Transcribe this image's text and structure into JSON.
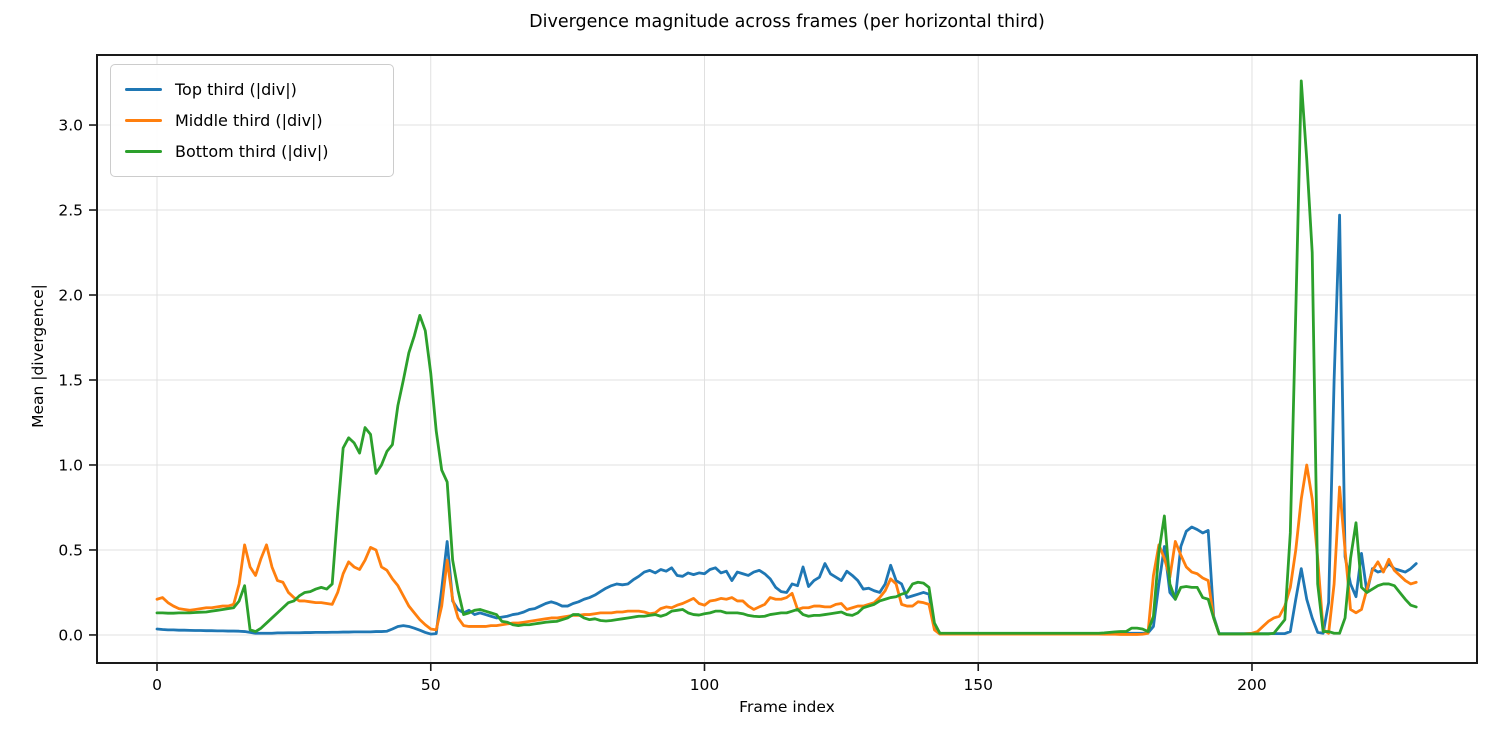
{
  "chart_data": {
    "type": "line",
    "title": "Divergence magnitude across frames (per horizontal third)",
    "xlabel": "Frame index",
    "ylabel": "Mean |divergence|",
    "x_start": 0,
    "x_step": 1,
    "xlim": [
      -10.96,
      241.1
    ],
    "ylim": [
      -0.165,
      3.412
    ],
    "grid": true,
    "legend_position": "upper-left",
    "axis_color": "#1a1a1a",
    "grid_color": "#e0e0e0",
    "x_ticks": [
      0,
      50,
      100,
      150,
      200
    ],
    "x_tick_labels": [
      "0",
      "50",
      "100",
      "150",
      "200"
    ],
    "y_ticks": [
      0.0,
      0.5,
      1.0,
      1.5,
      2.0,
      2.5,
      3.0
    ],
    "y_tick_labels": [
      "0.0",
      "0.5",
      "1.0",
      "1.5",
      "2.0",
      "2.5",
      "3.0"
    ],
    "series": [
      {
        "name": "Top third (|div|)",
        "color": "#1f77b4",
        "values": [
          0.035,
          0.032,
          0.03,
          0.03,
          0.028,
          0.028,
          0.027,
          0.026,
          0.026,
          0.025,
          0.025,
          0.024,
          0.024,
          0.023,
          0.023,
          0.022,
          0.02,
          0.015,
          0.01,
          0.01,
          0.01,
          0.01,
          0.012,
          0.012,
          0.013,
          0.013,
          0.013,
          0.014,
          0.014,
          0.015,
          0.015,
          0.015,
          0.016,
          0.016,
          0.017,
          0.017,
          0.018,
          0.018,
          0.018,
          0.018,
          0.02,
          0.02,
          0.022,
          0.035,
          0.05,
          0.055,
          0.05,
          0.04,
          0.028,
          0.015,
          0.005,
          0.008,
          0.27,
          0.55,
          0.2,
          0.15,
          0.13,
          0.145,
          0.12,
          0.13,
          0.12,
          0.11,
          0.1,
          0.105,
          0.11,
          0.12,
          0.125,
          0.135,
          0.15,
          0.155,
          0.17,
          0.185,
          0.195,
          0.185,
          0.17,
          0.17,
          0.185,
          0.195,
          0.21,
          0.22,
          0.235,
          0.255,
          0.275,
          0.29,
          0.3,
          0.295,
          0.3,
          0.325,
          0.345,
          0.37,
          0.38,
          0.365,
          0.385,
          0.375,
          0.395,
          0.35,
          0.345,
          0.365,
          0.355,
          0.365,
          0.36,
          0.385,
          0.395,
          0.365,
          0.375,
          0.32,
          0.37,
          0.36,
          0.35,
          0.37,
          0.38,
          0.36,
          0.33,
          0.28,
          0.255,
          0.25,
          0.3,
          0.29,
          0.4,
          0.285,
          0.32,
          0.34,
          0.42,
          0.36,
          0.34,
          0.32,
          0.375,
          0.35,
          0.32,
          0.27,
          0.275,
          0.26,
          0.25,
          0.3,
          0.41,
          0.32,
          0.3,
          0.22,
          0.23,
          0.24,
          0.25,
          0.24,
          0.05,
          0.01,
          0.008,
          0.008,
          0.008,
          0.008,
          0.008,
          0.008,
          0.008,
          0.008,
          0.008,
          0.008,
          0.008,
          0.008,
          0.008,
          0.008,
          0.008,
          0.008,
          0.008,
          0.008,
          0.008,
          0.008,
          0.008,
          0.008,
          0.008,
          0.008,
          0.008,
          0.008,
          0.008,
          0.008,
          0.008,
          0.008,
          0.009,
          0.009,
          0.01,
          0.01,
          0.01,
          0.01,
          0.01,
          0.012,
          0.05,
          0.3,
          0.52,
          0.25,
          0.21,
          0.52,
          0.61,
          0.635,
          0.62,
          0.6,
          0.615,
          0.11,
          0.008,
          0.008,
          0.008,
          0.008,
          0.008,
          0.008,
          0.008,
          0.008,
          0.008,
          0.008,
          0.008,
          0.008,
          0.008,
          0.02,
          0.21,
          0.39,
          0.21,
          0.1,
          0.015,
          0.01,
          0.19,
          1.5,
          2.47,
          0.46,
          0.3,
          0.225,
          0.48,
          0.25,
          0.39,
          0.37,
          0.38,
          0.42,
          0.39,
          0.38,
          0.37,
          0.39,
          0.42
        ]
      },
      {
        "name": "Middle third (|div|)",
        "color": "#ff7f0e",
        "values": [
          0.21,
          0.22,
          0.19,
          0.17,
          0.155,
          0.15,
          0.145,
          0.15,
          0.155,
          0.16,
          0.16,
          0.165,
          0.17,
          0.17,
          0.18,
          0.3,
          0.53,
          0.4,
          0.35,
          0.45,
          0.53,
          0.4,
          0.32,
          0.31,
          0.25,
          0.22,
          0.2,
          0.2,
          0.195,
          0.19,
          0.19,
          0.185,
          0.18,
          0.25,
          0.36,
          0.43,
          0.4,
          0.385,
          0.44,
          0.515,
          0.5,
          0.4,
          0.38,
          0.33,
          0.29,
          0.23,
          0.17,
          0.13,
          0.09,
          0.06,
          0.035,
          0.03,
          0.17,
          0.44,
          0.21,
          0.1,
          0.055,
          0.05,
          0.05,
          0.05,
          0.05,
          0.055,
          0.055,
          0.06,
          0.065,
          0.07,
          0.07,
          0.075,
          0.08,
          0.085,
          0.09,
          0.095,
          0.1,
          0.1,
          0.105,
          0.11,
          0.115,
          0.115,
          0.12,
          0.12,
          0.125,
          0.13,
          0.13,
          0.13,
          0.135,
          0.135,
          0.14,
          0.14,
          0.14,
          0.135,
          0.125,
          0.13,
          0.155,
          0.165,
          0.16,
          0.175,
          0.185,
          0.2,
          0.215,
          0.185,
          0.175,
          0.2,
          0.205,
          0.215,
          0.21,
          0.22,
          0.2,
          0.2,
          0.17,
          0.15,
          0.165,
          0.18,
          0.22,
          0.21,
          0.21,
          0.22,
          0.245,
          0.15,
          0.16,
          0.16,
          0.17,
          0.17,
          0.165,
          0.165,
          0.18,
          0.185,
          0.15,
          0.16,
          0.17,
          0.17,
          0.18,
          0.19,
          0.22,
          0.26,
          0.33,
          0.3,
          0.18,
          0.17,
          0.17,
          0.195,
          0.19,
          0.18,
          0.03,
          0.005,
          0.005,
          0.005,
          0.005,
          0.005,
          0.005,
          0.005,
          0.005,
          0.005,
          0.005,
          0.005,
          0.005,
          0.005,
          0.005,
          0.005,
          0.005,
          0.005,
          0.005,
          0.005,
          0.005,
          0.005,
          0.005,
          0.005,
          0.005,
          0.005,
          0.005,
          0.005,
          0.005,
          0.005,
          0.005,
          0.004,
          0.004,
          0.004,
          0.003,
          0.003,
          0.003,
          0.003,
          0.004,
          0.01,
          0.35,
          0.53,
          0.45,
          0.34,
          0.55,
          0.47,
          0.4,
          0.37,
          0.36,
          0.335,
          0.32,
          0.1,
          0.005,
          0.005,
          0.005,
          0.005,
          0.005,
          0.008,
          0.01,
          0.02,
          0.05,
          0.08,
          0.1,
          0.11,
          0.17,
          0.28,
          0.5,
          0.8,
          1.0,
          0.8,
          0.45,
          0.03,
          0.01,
          0.3,
          0.87,
          0.5,
          0.15,
          0.13,
          0.15,
          0.27,
          0.38,
          0.43,
          0.37,
          0.445,
          0.38,
          0.35,
          0.32,
          0.3,
          0.31
        ]
      },
      {
        "name": "Bottom third (|div|)",
        "color": "#2ca02c",
        "values": [
          0.13,
          0.13,
          0.128,
          0.128,
          0.13,
          0.13,
          0.13,
          0.132,
          0.134,
          0.135,
          0.14,
          0.145,
          0.15,
          0.155,
          0.16,
          0.2,
          0.29,
          0.03,
          0.02,
          0.04,
          0.07,
          0.1,
          0.13,
          0.16,
          0.19,
          0.2,
          0.23,
          0.25,
          0.255,
          0.27,
          0.28,
          0.27,
          0.3,
          0.72,
          1.1,
          1.16,
          1.13,
          1.07,
          1.22,
          1.18,
          0.95,
          1.0,
          1.08,
          1.12,
          1.35,
          1.5,
          1.66,
          1.76,
          1.88,
          1.79,
          1.54,
          1.2,
          0.97,
          0.9,
          0.44,
          0.26,
          0.12,
          0.13,
          0.145,
          0.15,
          0.14,
          0.13,
          0.12,
          0.08,
          0.075,
          0.06,
          0.055,
          0.06,
          0.06,
          0.065,
          0.07,
          0.075,
          0.078,
          0.08,
          0.09,
          0.1,
          0.12,
          0.12,
          0.1,
          0.09,
          0.095,
          0.085,
          0.082,
          0.085,
          0.09,
          0.095,
          0.1,
          0.105,
          0.11,
          0.11,
          0.115,
          0.12,
          0.11,
          0.12,
          0.14,
          0.145,
          0.15,
          0.13,
          0.12,
          0.117,
          0.125,
          0.13,
          0.14,
          0.14,
          0.13,
          0.13,
          0.13,
          0.125,
          0.115,
          0.11,
          0.108,
          0.11,
          0.12,
          0.125,
          0.13,
          0.13,
          0.14,
          0.15,
          0.12,
          0.11,
          0.115,
          0.115,
          0.12,
          0.125,
          0.13,
          0.135,
          0.12,
          0.115,
          0.13,
          0.16,
          0.17,
          0.18,
          0.2,
          0.21,
          0.22,
          0.225,
          0.24,
          0.25,
          0.3,
          0.31,
          0.305,
          0.28,
          0.07,
          0.01,
          0.01,
          0.01,
          0.01,
          0.01,
          0.01,
          0.01,
          0.01,
          0.01,
          0.01,
          0.01,
          0.01,
          0.01,
          0.01,
          0.01,
          0.01,
          0.01,
          0.01,
          0.01,
          0.01,
          0.01,
          0.01,
          0.01,
          0.01,
          0.01,
          0.01,
          0.01,
          0.01,
          0.01,
          0.01,
          0.012,
          0.015,
          0.018,
          0.02,
          0.02,
          0.04,
          0.04,
          0.035,
          0.02,
          0.11,
          0.49,
          0.7,
          0.3,
          0.21,
          0.28,
          0.285,
          0.28,
          0.28,
          0.22,
          0.21,
          0.1,
          0.006,
          0.006,
          0.006,
          0.006,
          0.006,
          0.006,
          0.006,
          0.006,
          0.006,
          0.006,
          0.01,
          0.05,
          0.09,
          0.6,
          1.9,
          3.26,
          2.8,
          2.25,
          0.3,
          0.02,
          0.02,
          0.01,
          0.01,
          0.1,
          0.45,
          0.66,
          0.28,
          0.25,
          0.27,
          0.29,
          0.3,
          0.3,
          0.29,
          0.25,
          0.21,
          0.175,
          0.165
        ]
      }
    ]
  }
}
